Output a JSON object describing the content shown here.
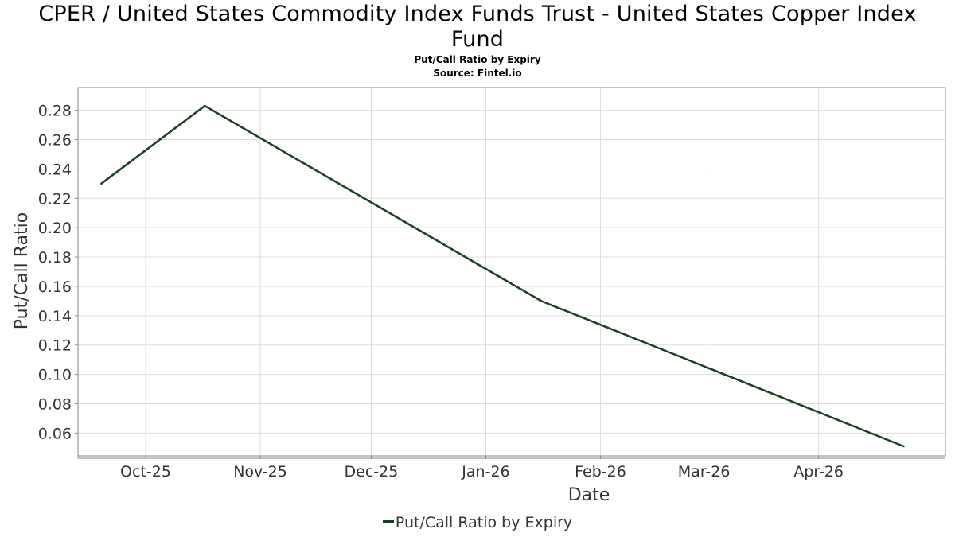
{
  "header": {
    "title_line1": "CPER / United States Commodity Index Funds Trust - United States Copper Index",
    "title_line2": "Fund",
    "subtitle": "Put/Call Ratio by Expiry",
    "source": "Source: Fintel.io"
  },
  "legend": {
    "label": "Put/Call Ratio by Expiry"
  },
  "colors": {
    "series": "#1b3f1f",
    "grid": "#dddddd",
    "frame": "#888888"
  },
  "chart_data": {
    "type": "line",
    "title": "CPER / United States Commodity Index Funds Trust - United States Copper Index Fund",
    "subtitle": "Put/Call Ratio by Expiry",
    "xlabel": "Date",
    "ylabel": "Put/Call Ratio",
    "x_ticks": [
      {
        "label": "Oct-25",
        "date": "2025-10-01"
      },
      {
        "label": "Nov-25",
        "date": "2025-11-01"
      },
      {
        "label": "Dec-25",
        "date": "2025-12-01"
      },
      {
        "label": "Jan-26",
        "date": "2026-01-01"
      },
      {
        "label": "Feb-26",
        "date": "2026-02-01"
      },
      {
        "label": "Mar-26",
        "date": "2026-03-01"
      },
      {
        "label": "Apr-26",
        "date": "2026-04-01"
      }
    ],
    "y_ticks": [
      0.06,
      0.08,
      0.1,
      0.12,
      0.14,
      0.16,
      0.18,
      0.2,
      0.22,
      0.24,
      0.26,
      0.28
    ],
    "y_tick_labels": [
      "0.06",
      "0.08",
      "0.10",
      "0.12",
      "0.14",
      "0.16",
      "0.18",
      "0.20",
      "0.22",
      "0.24",
      "0.26",
      "0.28"
    ],
    "xlim": [
      "2025-09-14",
      "2026-05-04"
    ],
    "ylim": [
      0.0445,
      0.2955
    ],
    "grid": true,
    "legend_position": "bottom",
    "series": [
      {
        "name": "Put/Call Ratio by Expiry",
        "points": [
          {
            "x": "2025-09-19",
            "y": 0.23
          },
          {
            "x": "2025-10-17",
            "y": 0.283
          },
          {
            "x": "2026-01-16",
            "y": 0.15
          },
          {
            "x": "2026-04-24",
            "y": 0.051
          }
        ]
      }
    ]
  }
}
